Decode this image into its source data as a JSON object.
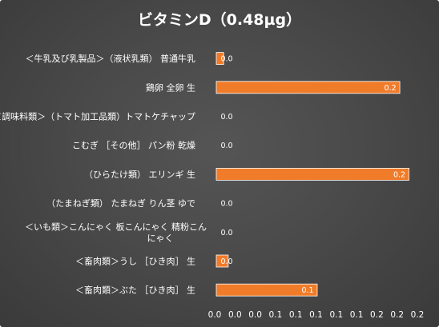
{
  "chart_data": {
    "type": "bar",
    "orientation": "horizontal",
    "title": "ビタミンD（0.48µg）",
    "categories": [
      [
        "＜牛乳及び乳製品＞（液状乳類） 普通牛乳"
      ],
      [
        "鶏卵 全卵 生"
      ],
      [
        "＜調味料類＞（トマト加工品類）トマトケチャップ"
      ],
      [
        "こむぎ ［その他］ パン粉 乾燥"
      ],
      [
        "（ひらたけ類） エリンギ 生"
      ],
      [
        "（たまねぎ類） たまねぎ りん茎 ゆで"
      ],
      [
        "＜いも類＞こんにゃく 板こんにゃく 精粉こん",
        "にゃく"
      ],
      [
        "＜畜肉類＞うし ［ひき肉］ 生"
      ],
      [
        "＜畜肉類＞ぶた ［ひき肉］ 生"
      ]
    ],
    "values": [
      0.008,
      0.2,
      0.0,
      0.0,
      0.21,
      0.0,
      0.0,
      0.013,
      0.11
    ],
    "data_labels": [
      "0.0",
      "0.2",
      "0.0",
      "0.0",
      "0.2",
      "0.0",
      "0.0",
      "0.0",
      "0.1"
    ],
    "x_tick_labels": [
      "0.0",
      "0.0",
      "0.0",
      "0.1",
      "0.1",
      "0.1",
      "0.1",
      "0.1",
      "0.2",
      "0.2",
      "0.2"
    ],
    "xlim": [
      0,
      0.22
    ],
    "grid": false,
    "legend": "none",
    "colors": {
      "bar": "#f07c2a",
      "bar_edge": "#ffffff",
      "text": "#ffffff",
      "background": "#4d4d4d"
    }
  }
}
